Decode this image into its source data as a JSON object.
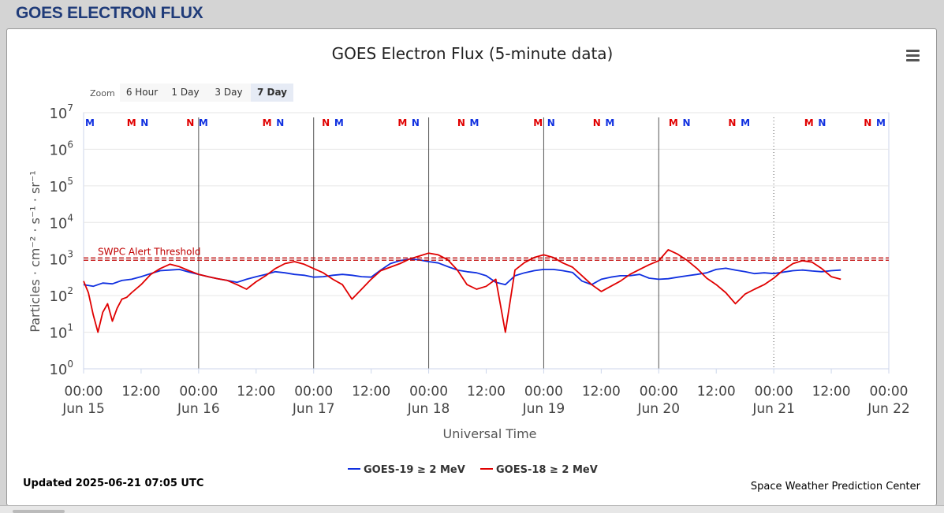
{
  "page": {
    "title": "GOES ELECTRON FLUX"
  },
  "chart_data": {
    "type": "line",
    "title": "GOES Electron Flux (5-minute data)",
    "xlabel": "Universal Time",
    "ylabel": "Particles · cm⁻² · s⁻¹ · sr⁻¹",
    "y_scale": "log",
    "ylim": [
      1,
      10000000
    ],
    "y_ticks": [
      {
        "base": "10",
        "exp": "0"
      },
      {
        "base": "10",
        "exp": "1"
      },
      {
        "base": "10",
        "exp": "2"
      },
      {
        "base": "10",
        "exp": "3"
      },
      {
        "base": "10",
        "exp": "4"
      },
      {
        "base": "10",
        "exp": "5"
      },
      {
        "base": "10",
        "exp": "6"
      },
      {
        "base": "10",
        "exp": "7"
      }
    ],
    "xlim": [
      "2025-06-15 00:00",
      "2025-06-22 00:00"
    ],
    "x_ticks": [
      {
        "time": "00:00",
        "date": "Jun 15"
      },
      {
        "time": "12:00",
        "date": ""
      },
      {
        "time": "00:00",
        "date": "Jun 16"
      },
      {
        "time": "12:00",
        "date": ""
      },
      {
        "time": "00:00",
        "date": "Jun 17"
      },
      {
        "time": "12:00",
        "date": ""
      },
      {
        "time": "00:00",
        "date": "Jun 18"
      },
      {
        "time": "12:00",
        "date": ""
      },
      {
        "time": "00:00",
        "date": "Jun 19"
      },
      {
        "time": "12:00",
        "date": ""
      },
      {
        "time": "00:00",
        "date": "Jun 20"
      },
      {
        "time": "12:00",
        "date": ""
      },
      {
        "time": "00:00",
        "date": "Jun 21"
      },
      {
        "time": "12:00",
        "date": ""
      },
      {
        "time": "00:00",
        "date": "Jun 22"
      }
    ],
    "grid": true,
    "threshold": {
      "label": "SWPC Alert Threshold",
      "value": 1000,
      "color": "#c00000"
    },
    "series": [
      {
        "name": "GOES-19 ≥ 2 MeV",
        "color": "#1030e0",
        "x_hours": [
          0,
          2,
          4,
          6,
          8,
          10,
          12,
          14,
          16,
          18,
          20,
          22,
          24,
          26,
          28,
          30,
          32,
          34,
          36,
          38,
          40,
          42,
          44,
          46,
          48,
          50,
          52,
          54,
          56,
          58,
          60,
          62,
          64,
          66,
          68,
          70,
          72,
          74,
          76,
          78,
          80,
          82,
          84,
          86,
          88,
          90,
          92,
          94,
          96,
          98,
          100,
          102,
          104,
          106,
          108,
          110,
          112,
          114,
          116,
          118,
          120,
          122,
          124,
          126,
          128,
          130,
          132,
          134,
          136,
          138,
          140,
          142,
          144,
          146,
          148,
          150,
          152,
          154,
          156,
          158
        ],
        "values": [
          200,
          180,
          220,
          210,
          260,
          280,
          330,
          400,
          480,
          500,
          520,
          440,
          380,
          330,
          290,
          260,
          230,
          280,
          330,
          380,
          450,
          420,
          380,
          360,
          320,
          330,
          360,
          380,
          360,
          330,
          320,
          500,
          750,
          900,
          1000,
          950,
          850,
          780,
          620,
          500,
          450,
          420,
          350,
          230,
          200,
          350,
          420,
          480,
          520,
          520,
          480,
          430,
          250,
          200,
          280,
          320,
          350,
          350,
          380,
          300,
          280,
          290,
          320,
          350,
          380,
          420,
          520,
          560,
          500,
          450,
          400,
          420,
          400,
          440,
          480,
          500,
          470,
          450,
          480,
          500
        ]
      },
      {
        "name": "GOES-18 ≥ 2 MeV",
        "color": "#e00000",
        "x_hours": [
          0,
          1,
          2,
          3,
          4,
          5,
          6,
          7,
          8,
          9,
          10,
          12,
          14,
          16,
          18,
          20,
          22,
          24,
          26,
          28,
          30,
          32,
          34,
          36,
          38,
          40,
          42,
          44,
          46,
          48,
          50,
          52,
          54,
          56,
          58,
          60,
          62,
          64,
          66,
          68,
          70,
          72,
          74,
          76,
          78,
          80,
          82,
          84,
          86,
          88,
          90,
          92,
          94,
          96,
          98,
          100,
          102,
          104,
          106,
          108,
          110,
          112,
          114,
          116,
          118,
          120,
          122,
          124,
          126,
          128,
          130,
          132,
          134,
          136,
          138,
          140,
          142,
          144,
          146,
          148,
          150,
          152,
          154,
          156,
          158
        ],
        "values": [
          250,
          120,
          30,
          10,
          35,
          60,
          20,
          45,
          80,
          90,
          120,
          200,
          380,
          550,
          720,
          620,
          480,
          380,
          330,
          290,
          260,
          200,
          150,
          240,
          350,
          550,
          750,
          850,
          720,
          550,
          420,
          280,
          200,
          80,
          150,
          280,
          480,
          600,
          750,
          1000,
          1200,
          1450,
          1300,
          950,
          500,
          200,
          150,
          180,
          280,
          10,
          500,
          800,
          1100,
          1300,
          1100,
          780,
          600,
          350,
          200,
          130,
          180,
          250,
          380,
          520,
          700,
          900,
          1800,
          1350,
          900,
          550,
          300,
          200,
          120,
          60,
          110,
          150,
          200,
          300,
          500,
          750,
          900,
          820,
          550,
          330,
          280
        ]
      }
    ],
    "markers": {
      "labels": [
        {
          "t": "M",
          "day": 0,
          "hour": 0,
          "color": "#1030e0"
        },
        {
          "t": "M",
          "day": 0,
          "hour": 22.2,
          "color": "#e00000"
        },
        {
          "t": "N",
          "day": 0,
          "hour": 29.2,
          "color": "#1030e0"
        },
        {
          "t": "N",
          "day": 0,
          "hour": 53.6,
          "color": "#e00000"
        },
        {
          "t": "M",
          "day": 0,
          "hour": 60.6,
          "color": "#1030e0"
        },
        {
          "t": "M",
          "day": 0,
          "hour": 94.6,
          "color": "#e00000"
        },
        {
          "t": "N",
          "day": 0,
          "hour": 101.6,
          "color": "#1030e0"
        },
        {
          "t": "N",
          "day": 0,
          "hour": 126,
          "color": "#e00000"
        },
        {
          "t": "M",
          "day": 0,
          "hour": 133,
          "color": "#1030e0"
        },
        {
          "t": "M",
          "day": 0,
          "hour": 166.9,
          "color": "#e00000"
        },
        {
          "t": "N",
          "day": 0,
          "hour": 173.9,
          "color": "#1030e0"
        },
        {
          "t": "N",
          "day": 0,
          "hour": 198.3,
          "color": "#e00000"
        },
        {
          "t": "M",
          "day": 0,
          "hour": 205.3,
          "color": "#1030e0"
        },
        {
          "t": "M",
          "day": 0,
          "hour": 239.3,
          "color": "#e00000"
        },
        {
          "t": "N",
          "day": 0,
          "hour": 246.3,
          "color": "#1030e0"
        },
        {
          "t": "N",
          "day": 0,
          "hour": 270.7,
          "color": "#e00000"
        },
        {
          "t": "M",
          "day": 0,
          "hour": 277.7,
          "color": "#1030e0"
        },
        {
          "t": "M",
          "day": 0,
          "hour": 311.6,
          "color": "#e00000"
        },
        {
          "t": "N",
          "day": 0,
          "hour": 318.6,
          "color": "#1030e0"
        },
        {
          "t": "N",
          "day": 0,
          "hour": 343,
          "color": "#e00000"
        },
        {
          "t": "M",
          "day": 0,
          "hour": 350,
          "color": "#1030e0"
        },
        {
          "t": "M",
          "day": 0,
          "hour": 384,
          "color": "#e00000"
        },
        {
          "t": "N",
          "day": 0,
          "hour": 391,
          "color": "#1030e0"
        },
        {
          "t": "N",
          "day": 0,
          "hour": 415.4,
          "color": "#e00000"
        },
        {
          "t": "M",
          "day": 0,
          "hour": 422.4,
          "color": "#1030e0"
        }
      ]
    }
  },
  "zoom": {
    "label": "Zoom",
    "buttons": [
      "6 Hour",
      "1 Day",
      "3 Day",
      "7 Day"
    ],
    "selected": "7 Day"
  },
  "menu_icon": "hamburger-menu-icon",
  "footer": {
    "updated": "Updated 2025-06-21 07:05 UTC",
    "credit": "Space Weather Prediction Center"
  },
  "colors": {
    "title": "#1f3b79",
    "goes19": "#1030e0",
    "goes18": "#e00000",
    "threshold": "#c00000"
  }
}
